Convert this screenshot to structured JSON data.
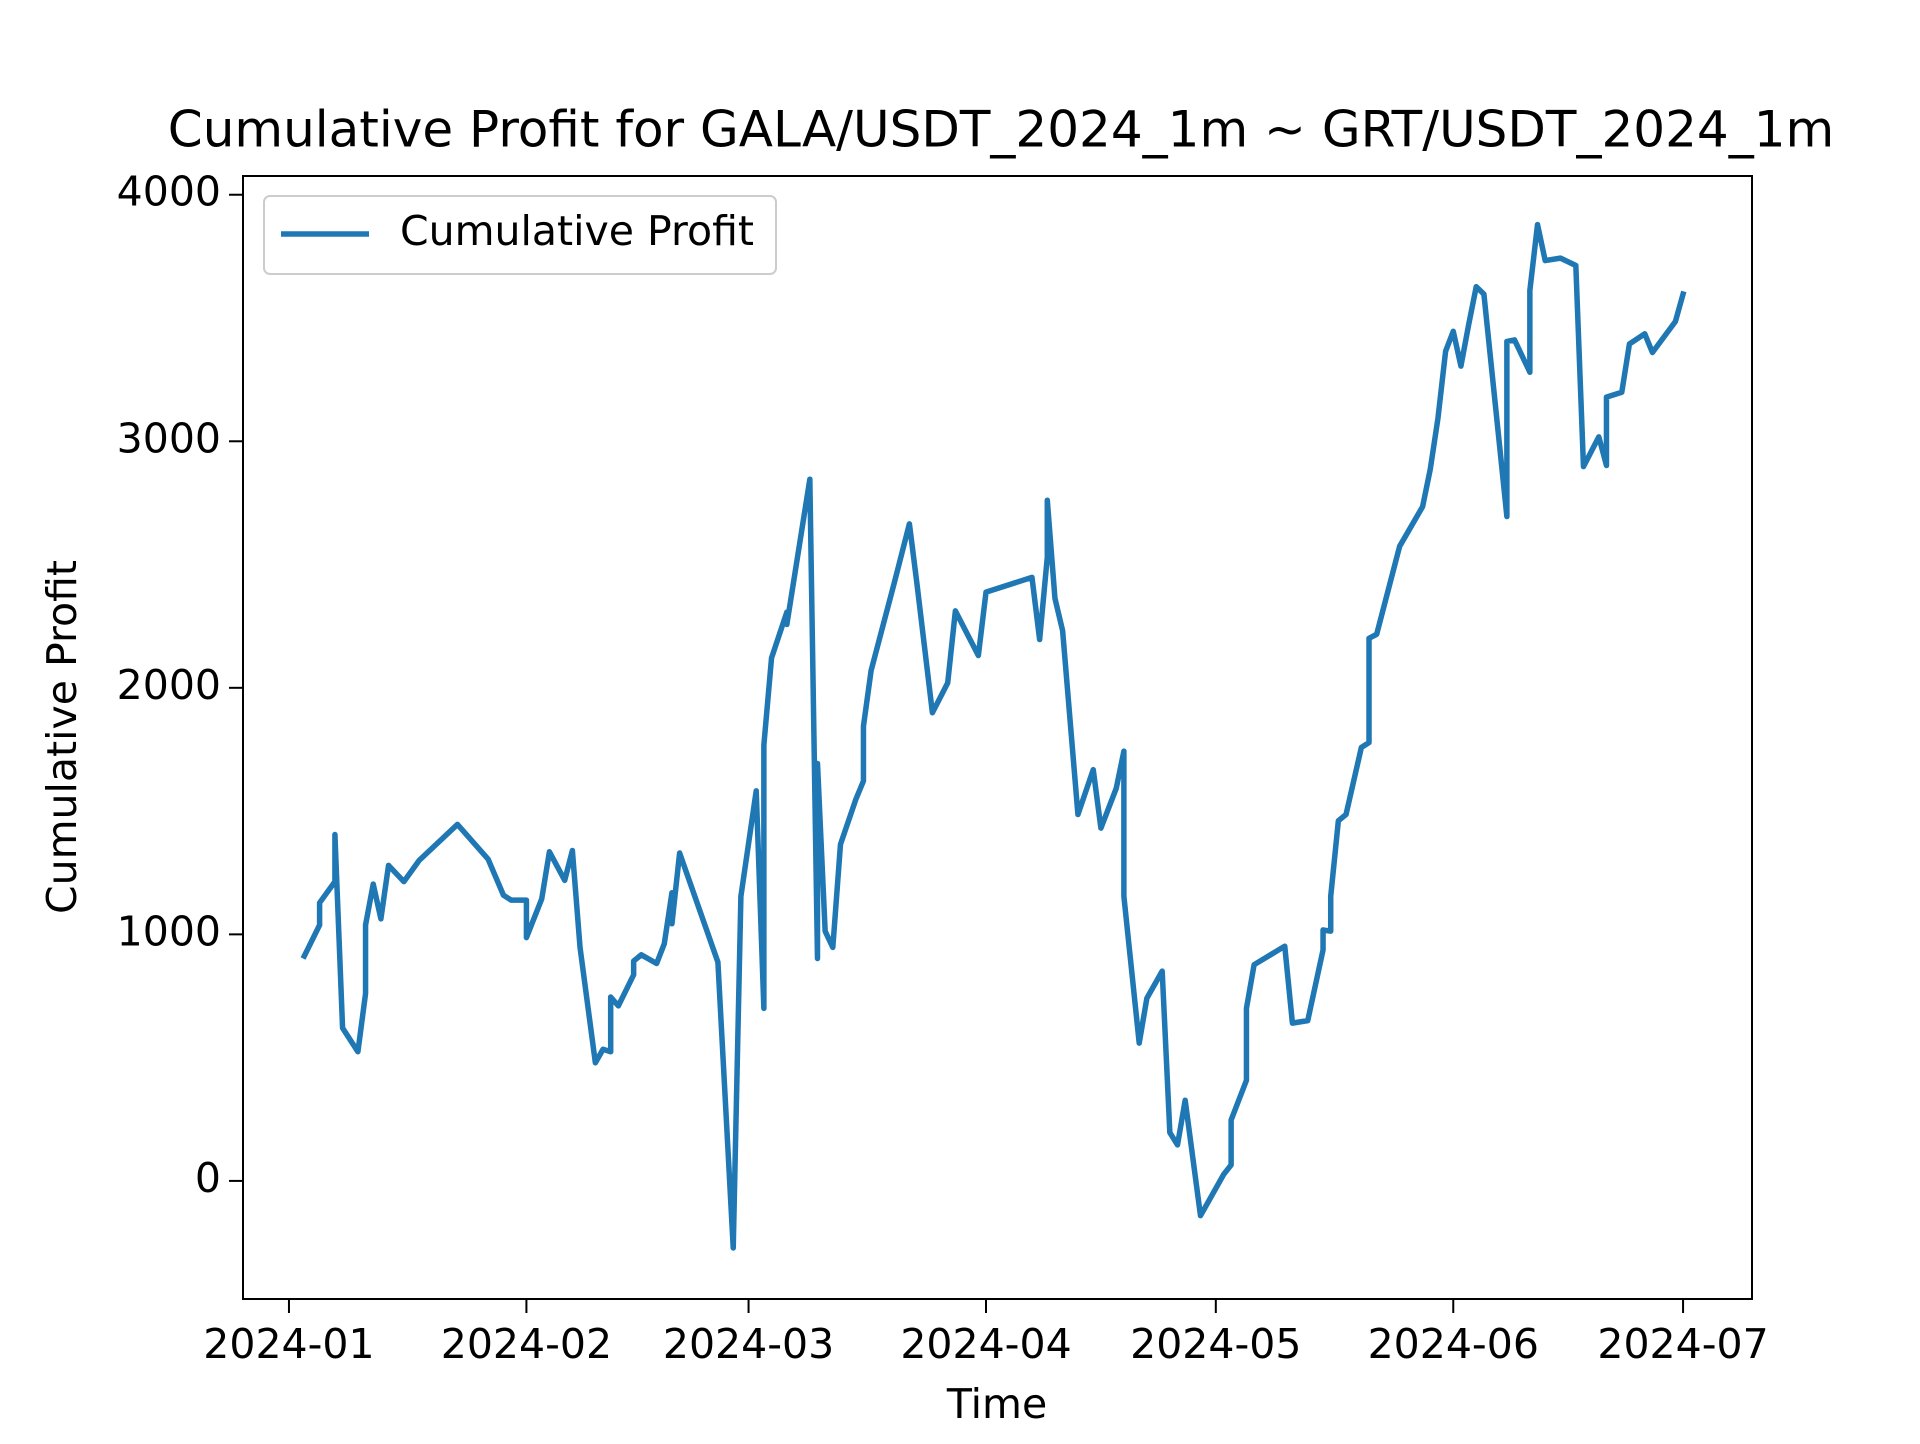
{
  "chart_data": {
    "type": "line",
    "title": "Cumulative Profit for GALA/USDT_2024_1m ~ GRT/USDT_2024_1m",
    "x_label": "Time",
    "y_label": "Cumulative Profit",
    "legend": "upper left",
    "x": [
      "2024-01-03",
      "2024-01-05",
      "2024-01-05",
      "2024-01-07",
      "2024-01-07",
      "2024-01-08",
      "2024-01-10",
      "2024-01-11",
      "2024-01-11",
      "2024-01-12",
      "2024-01-13",
      "2024-01-14",
      "2024-01-16",
      "2024-01-18",
      "2024-01-23",
      "2024-01-27",
      "2024-01-29",
      "2024-01-30",
      "2024-02-01",
      "2024-02-01",
      "2024-02-03",
      "2024-02-04",
      "2024-02-06",
      "2024-02-07",
      "2024-02-08",
      "2024-02-10",
      "2024-02-11",
      "2024-02-12",
      "2024-02-12",
      "2024-02-13",
      "2024-02-15",
      "2024-02-15",
      "2024-02-16",
      "2024-02-18",
      "2024-02-19",
      "2024-02-20",
      "2024-02-20",
      "2024-02-21",
      "2024-02-26",
      "2024-02-28",
      "2024-02-29",
      "2024-03-02",
      "2024-03-03",
      "2024-03-03",
      "2024-03-04",
      "2024-03-06",
      "2024-03-06",
      "2024-03-09",
      "2024-03-10",
      "2024-03-10",
      "2024-03-11",
      "2024-03-12",
      "2024-03-13",
      "2024-03-15",
      "2024-03-16",
      "2024-03-16",
      "2024-03-17",
      "2024-03-20",
      "2024-03-22",
      "2024-03-23",
      "2024-03-25",
      "2024-03-27",
      "2024-03-28",
      "2024-03-31",
      "2024-04-01",
      "2024-04-07",
      "2024-04-08",
      "2024-04-09",
      "2024-04-09",
      "2024-04-10",
      "2024-04-11",
      "2024-04-13",
      "2024-04-15",
      "2024-04-16",
      "2024-04-18",
      "2024-04-19",
      "2024-04-19",
      "2024-04-21",
      "2024-04-22",
      "2024-04-24",
      "2024-04-25",
      "2024-04-26",
      "2024-04-27",
      "2024-04-29",
      "2024-05-02",
      "2024-05-03",
      "2024-05-03",
      "2024-05-05",
      "2024-05-05",
      "2024-05-06",
      "2024-05-10",
      "2024-05-11",
      "2024-05-13",
      "2024-05-15",
      "2024-05-15",
      "2024-05-16",
      "2024-05-16",
      "2024-05-17",
      "2024-05-18",
      "2024-05-20",
      "2024-05-21",
      "2024-05-21",
      "2024-05-22",
      "2024-05-25",
      "2024-05-28",
      "2024-05-29",
      "2024-05-30",
      "2024-05-31",
      "2024-06-01",
      "2024-06-02",
      "2024-06-03",
      "2024-06-04",
      "2024-06-05",
      "2024-06-08",
      "2024-06-08",
      "2024-06-09",
      "2024-06-11",
      "2024-06-11",
      "2024-06-12",
      "2024-06-13",
      "2024-06-15",
      "2024-06-17",
      "2024-06-18",
      "2024-06-20",
      "2024-06-21",
      "2024-06-21",
      "2024-06-23",
      "2024-06-24",
      "2024-06-26",
      "2024-06-27",
      "2024-06-30",
      "2024-07-01"
    ],
    "series": [
      {
        "name": "Cumulative Profit",
        "color": "#1f77b4",
        "values": [
          912,
          1038,
          1128,
          1214,
          1405,
          620,
          524,
          760,
          1038,
          1204,
          1063,
          1280,
          1214,
          1300,
          1446,
          1305,
          1159,
          1139,
          1139,
          987,
          1144,
          1335,
          1219,
          1340,
          947,
          479,
          534,
          524,
          746,
          710,
          836,
          892,
          917,
          882,
          962,
          1169,
          1043,
          1330,
          887,
          -272,
          1154,
          1582,
          700,
          1768,
          2121,
          2307,
          2257,
          2846,
          902,
          1693,
          1013,
          947,
          1365,
          1547,
          1622,
          1844,
          2070,
          2423,
          2665,
          2418,
          1899,
          2020,
          2312,
          2131,
          2388,
          2448,
          2196,
          2529,
          2761,
          2363,
          2232,
          1486,
          1668,
          1431,
          1592,
          1743,
          1154,
          559,
          741,
          851,
          196,
          146,
          327,
          -141,
          25,
          65,
          247,
          408,
          700,
          877,
          952,
          640,
          650,
          937,
          1018,
          1013,
          1154,
          1461,
          1486,
          1758,
          1778,
          2201,
          2217,
          2574,
          2735,
          2887,
          3093,
          3365,
          3446,
          3305,
          3471,
          3627,
          3597,
          2695,
          3405,
          3411,
          3280,
          3612,
          3879,
          3733,
          3743,
          3713,
          2897,
          3018,
          2902,
          3179,
          3199,
          3395,
          3436,
          3360,
          3486,
          3597
        ]
      }
    ],
    "xlim": [
      "2023-12-26",
      "2024-07-10"
    ],
    "xticks": [
      "2024-01",
      "2024-02",
      "2024-03",
      "2024-04",
      "2024-05",
      "2024-06",
      "2024-07"
    ],
    "ylim": [
      -479,
      4076
    ],
    "yticks": [
      0,
      1000,
      2000,
      3000,
      4000
    ]
  }
}
